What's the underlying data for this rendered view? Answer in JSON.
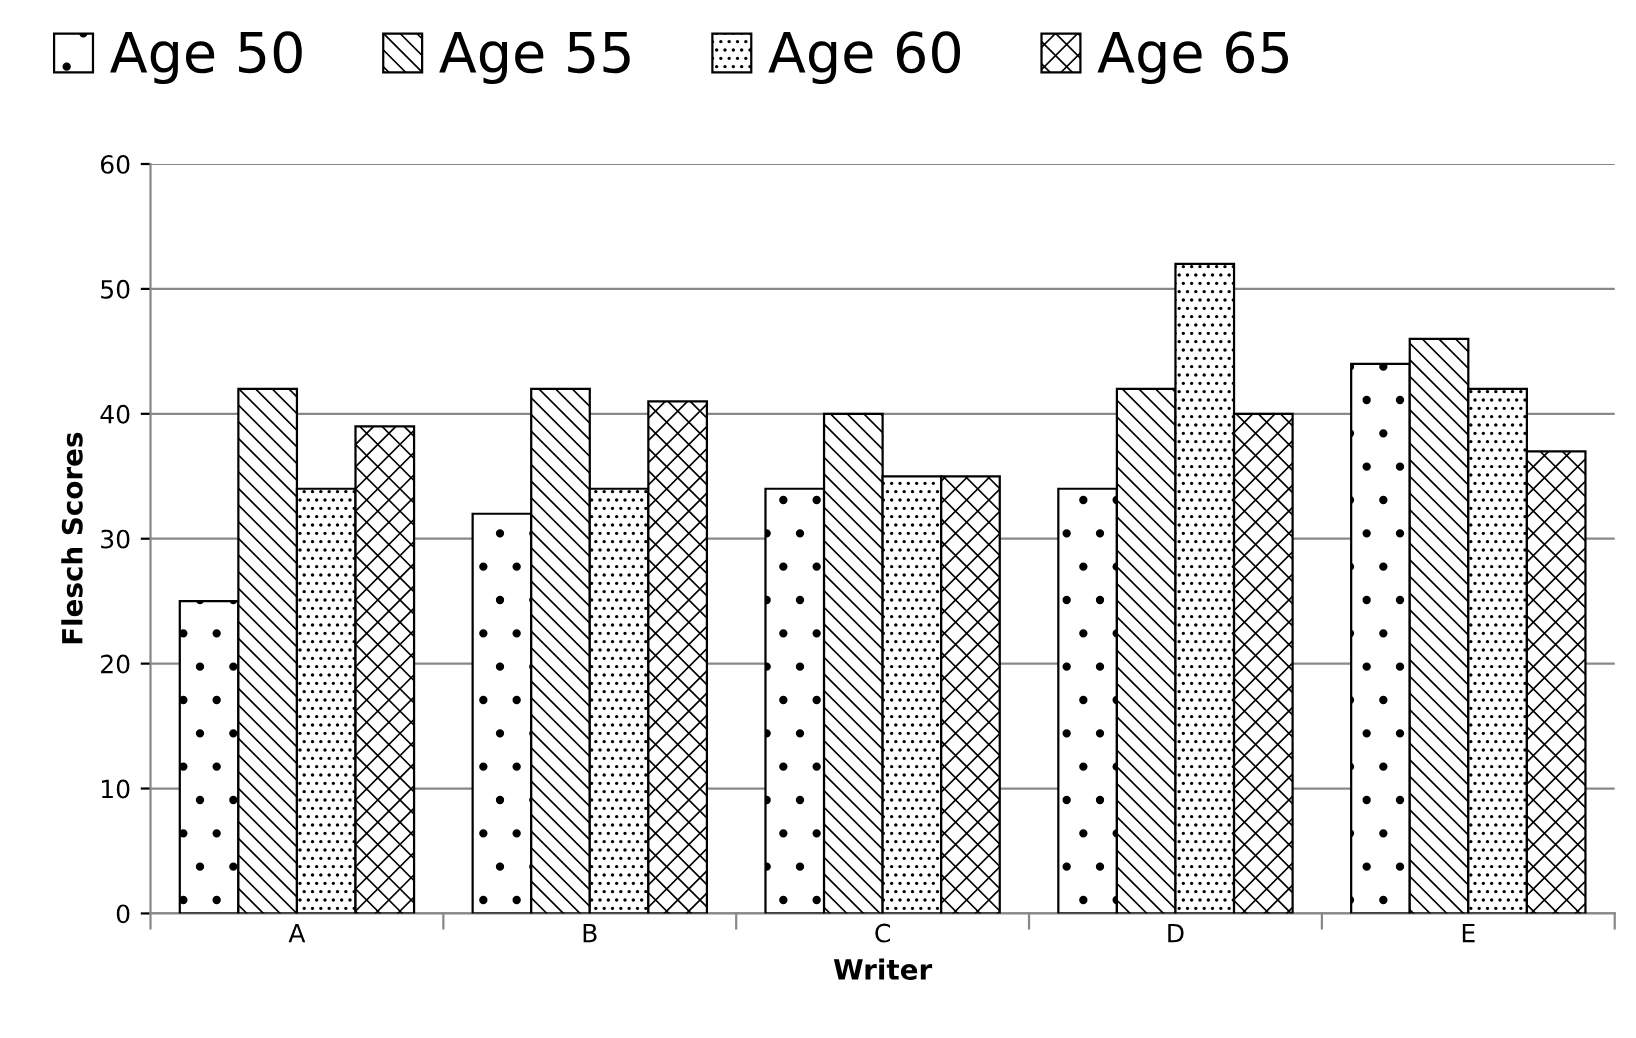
{
  "chart_data": {
    "type": "bar",
    "xlabel": "Writer",
    "ylabel": "Flesch Scores",
    "categories": [
      "A",
      "B",
      "C",
      "D",
      "E"
    ],
    "series": [
      {
        "name": "Age 50",
        "values": [
          25,
          32,
          34,
          34,
          44
        ]
      },
      {
        "name": "Age 55",
        "values": [
          42,
          42,
          40,
          42,
          46
        ]
      },
      {
        "name": "Age 60",
        "values": [
          34,
          34,
          35,
          52,
          42
        ]
      },
      {
        "name": "Age 65",
        "values": [
          39,
          41,
          35,
          40,
          37
        ]
      }
    ],
    "ylim": [
      0,
      60
    ],
    "yticks": [
      0,
      10,
      20,
      30,
      40,
      50,
      60
    ],
    "grid": "y",
    "legend": "top"
  }
}
